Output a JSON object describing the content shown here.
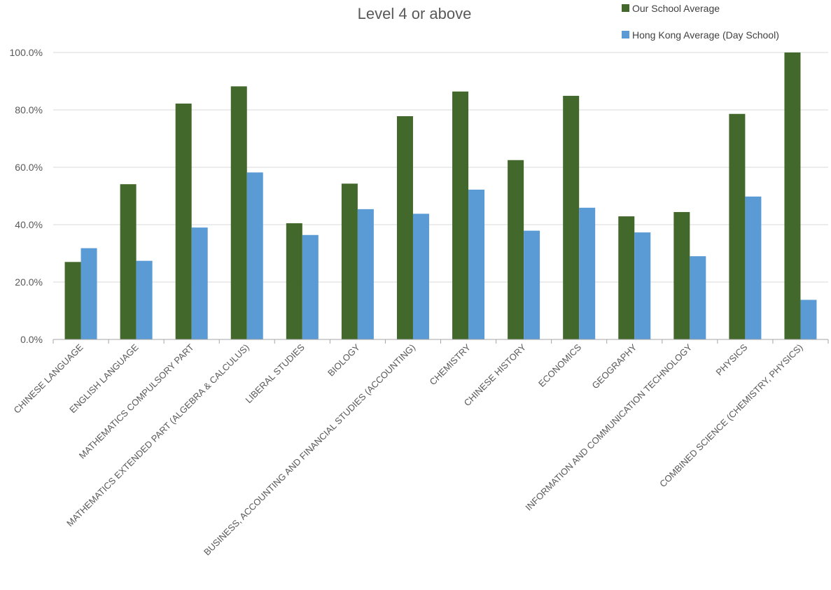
{
  "chart_data": {
    "type": "bar",
    "title": "Level 4 or above",
    "xlabel": "",
    "ylabel": "",
    "ylim": [
      0,
      100
    ],
    "yticks": [
      "0.0%",
      "20.0%",
      "40.0%",
      "60.0%",
      "80.0%",
      "100.0%"
    ],
    "grid": true,
    "legend_position": "top-right",
    "categories": [
      "CHINESE LANGUAGE",
      "ENGLISH LANGUAGE",
      "MATHEMATICS COMPULSORY PART",
      "MATHEMATICS EXTENDED PART (ALGEBRA & CALCULUS)",
      "LIBERAL STUDIES",
      "BIOLOGY",
      "BUSINESS, ACCOUNTING AND FINANCIAL STUDIES (ACCOUNTING)",
      "CHEMISTRY",
      "CHINESE HISTORY",
      "ECONOMICS",
      "GEOGRAPHY",
      "INFORMATION AND COMMUNICATION TECHNOLOGY",
      "PHYSICS",
      "COMBINED SCIENCE (CHEMISTRY, PHYSICS)"
    ],
    "series": [
      {
        "name": "Our School Average",
        "color": "#43682b",
        "values": [
          27.0,
          54.1,
          82.2,
          88.2,
          40.5,
          54.3,
          77.8,
          86.4,
          62.5,
          84.9,
          42.9,
          44.4,
          78.6,
          100.0
        ]
      },
      {
        "name": "Hong Kong Average (Day School)",
        "color": "#5b9bd5",
        "values": [
          31.8,
          27.4,
          39.0,
          58.2,
          36.4,
          45.4,
          43.8,
          52.2,
          37.9,
          45.9,
          37.3,
          29.0,
          49.8,
          13.8
        ]
      }
    ]
  }
}
